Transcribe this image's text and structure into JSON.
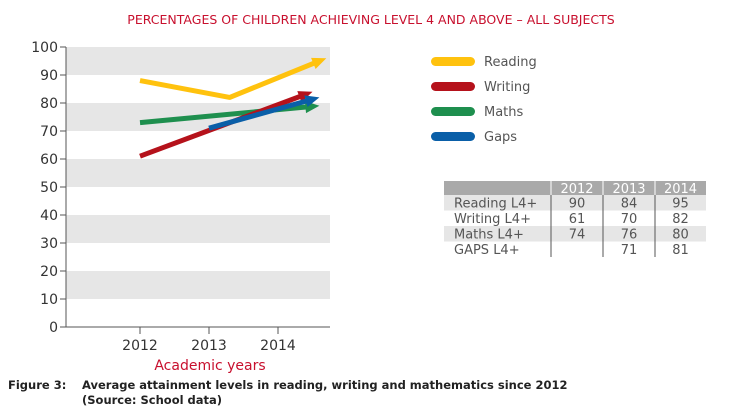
{
  "chart_data": {
    "type": "line",
    "title": "PERCENTAGES OF CHILDREN ACHIEVING LEVEL 4 AND ABOVE – ALL SUBJECTS",
    "xlabel": "Academic years",
    "ylabel": "",
    "ylim": [
      0,
      100
    ],
    "y_ticks": [
      "0",
      "10",
      "20",
      "30",
      "40",
      "50",
      "60",
      "70",
      "80",
      "90",
      "100"
    ],
    "categories": [
      "2012",
      "2013",
      "2014"
    ],
    "grid": "horizontal bands",
    "legend_position": "top-right",
    "series": [
      {
        "name": "Reading",
        "color": "#ffc20e",
        "x": [
          2012,
          2013.3,
          2014.7
        ],
        "values": [
          88,
          82,
          96
        ]
      },
      {
        "name": "Writing",
        "color": "#b5121b",
        "x": [
          2012,
          2014.5
        ],
        "values": [
          61,
          84
        ]
      },
      {
        "name": "Maths",
        "color": "#1e8f4e",
        "x": [
          2012,
          2014.6
        ],
        "values": [
          73,
          79
        ]
      },
      {
        "name": "Gaps",
        "color": "#0a5fa8",
        "x": [
          2013,
          2014.6
        ],
        "values": [
          71,
          82
        ]
      }
    ],
    "table": {
      "columns": [
        "2012",
        "2013",
        "2014"
      ],
      "rows": [
        {
          "label": "Reading L4+",
          "values": [
            "90",
            "84",
            "95"
          ]
        },
        {
          "label": "Writing L4+",
          "values": [
            "61",
            "70",
            "82"
          ]
        },
        {
          "label": "Maths L4+",
          "values": [
            "74",
            "76",
            "80"
          ]
        },
        {
          "label": "GAPS L4+",
          "values": [
            "",
            "71",
            "81"
          ]
        }
      ]
    }
  },
  "caption": {
    "label": "Figure 3:",
    "text": "Average attainment levels in reading, writing and mathematics since 2012",
    "source": "(Source: School data)"
  }
}
